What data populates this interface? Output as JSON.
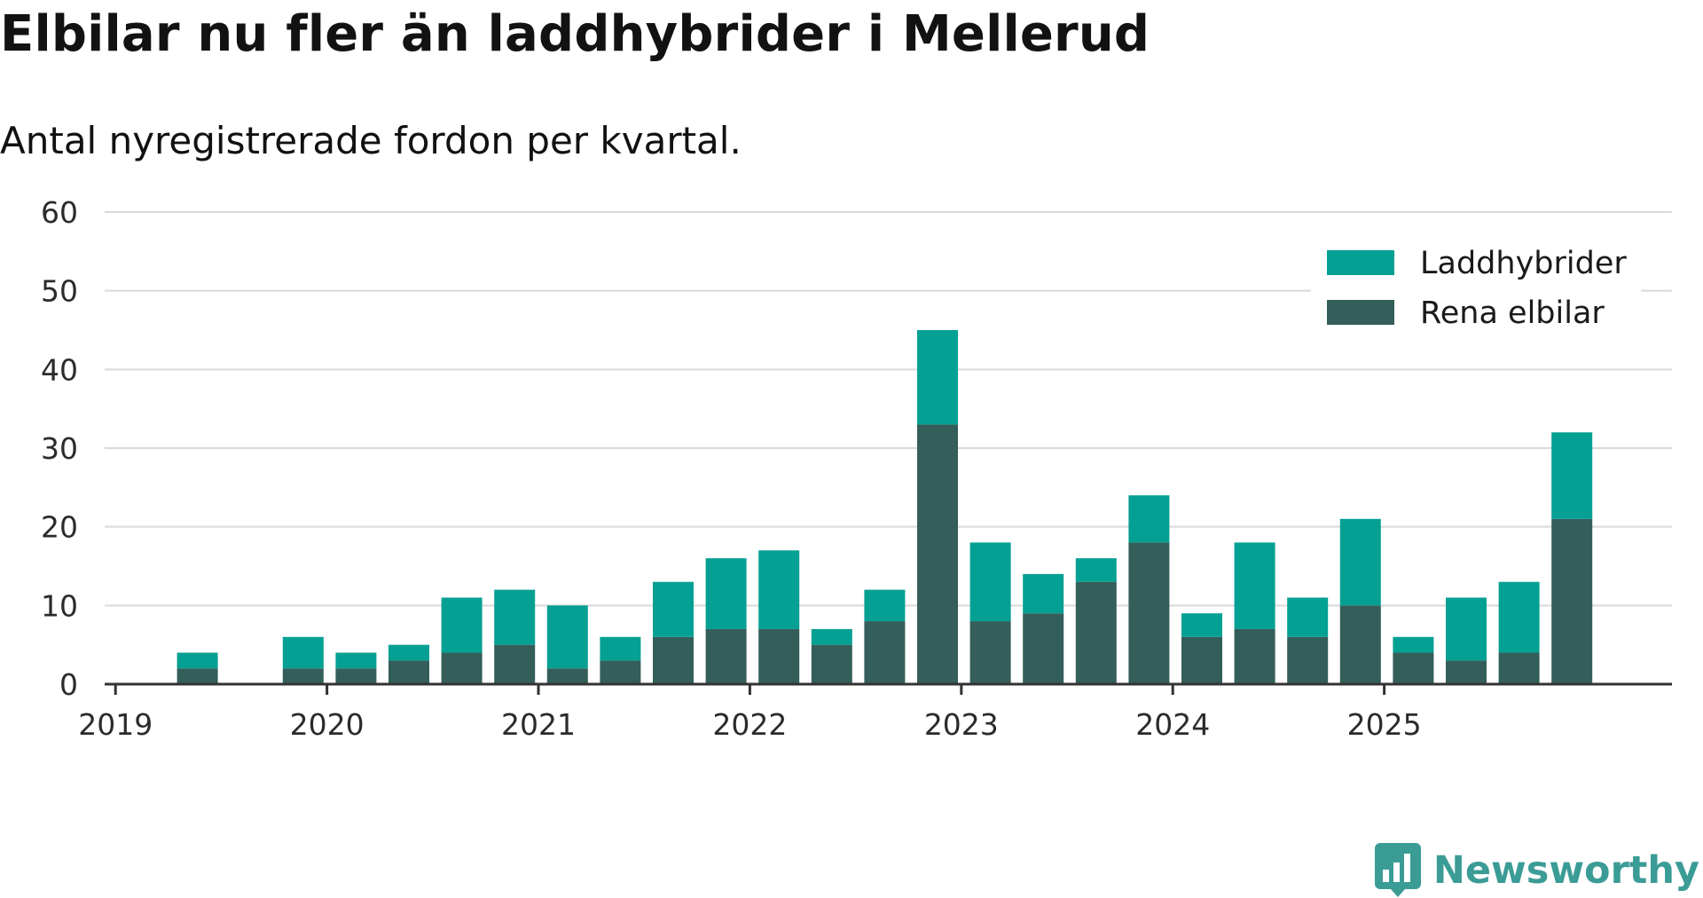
{
  "chart_data": {
    "type": "bar",
    "stacked": true,
    "title": "Elbilar nu fler än laddhybrider i Mellerud",
    "subtitle": "Antal nyregistrerade fordon per kvartal.",
    "xlabel": "",
    "ylabel": "",
    "ylim": [
      0,
      60
    ],
    "yticks": [
      0,
      10,
      20,
      30,
      40,
      50,
      60
    ],
    "grid": true,
    "legend_position": "top-right",
    "categories": [
      "2019 Q1",
      "2019 Q2",
      "2019 Q3",
      "2019 Q4",
      "2020 Q1",
      "2020 Q2",
      "2020 Q3",
      "2020 Q4",
      "2021 Q1",
      "2021 Q2",
      "2021 Q3",
      "2021 Q4",
      "2022 Q1",
      "2022 Q2",
      "2022 Q3",
      "2022 Q4",
      "2023 Q1",
      "2023 Q2",
      "2023 Q3",
      "2023 Q4",
      "2024 Q1",
      "2024 Q2",
      "2024 Q3",
      "2024 Q4",
      "2025 Q1",
      "2025 Q2",
      "2025 Q3",
      "2025 Q4"
    ],
    "year_labels": [
      {
        "label": "2019",
        "index": 0
      },
      {
        "label": "2020",
        "index": 4
      },
      {
        "label": "2021",
        "index": 8
      },
      {
        "label": "2022",
        "index": 12
      },
      {
        "label": "2023",
        "index": 16
      },
      {
        "label": "2024",
        "index": 20
      },
      {
        "label": "2025",
        "index": 24
      }
    ],
    "series": [
      {
        "name": "Rena elbilar",
        "color": "#345e5a",
        "values": [
          0,
          2,
          0,
          2,
          2,
          3,
          4,
          5,
          2,
          3,
          6,
          7,
          7,
          5,
          8,
          33,
          8,
          9,
          13,
          18,
          6,
          7,
          6,
          10,
          4,
          3,
          4,
          21
        ]
      },
      {
        "name": "Laddhybrider",
        "color": "#04a093",
        "values": [
          0,
          2,
          0,
          4,
          2,
          2,
          7,
          7,
          8,
          3,
          7,
          9,
          10,
          2,
          4,
          12,
          10,
          5,
          3,
          6,
          3,
          11,
          5,
          11,
          2,
          8,
          9,
          11
        ]
      }
    ],
    "legend_order": [
      "Laddhybrider",
      "Rena elbilar"
    ]
  },
  "brand": {
    "name": "Newsworthy",
    "color": "#3b9c96"
  }
}
